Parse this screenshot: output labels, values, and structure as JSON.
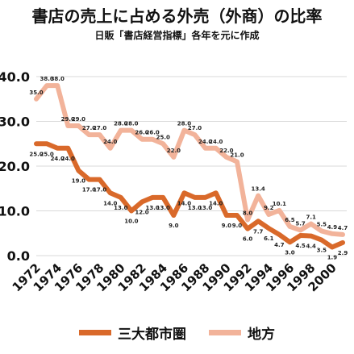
{
  "title": "書店の売上に占める外売（外商）の比率",
  "subtitle": "日販「書店経営指標」各年を元に作成",
  "chart_data": {
    "type": "line",
    "x": [
      1972,
      1973,
      1974,
      1975,
      1976,
      1977,
      1978,
      1979,
      1980,
      1981,
      1982,
      1983,
      1984,
      1985,
      1986,
      1987,
      1988,
      1989,
      1990,
      1991,
      1992,
      1993,
      1994,
      1995,
      1996,
      1997,
      1998,
      1999,
      2000,
      2001
    ],
    "x_tick_labels": [
      "1972",
      "1974",
      "1976",
      "1978",
      "1980",
      "1982",
      "1984",
      "1986",
      "1988",
      "1990",
      "1992",
      "1994",
      "1996",
      "1998",
      "2000"
    ],
    "ylim": [
      0,
      40
    ],
    "y_ticks": [
      "0.0",
      "10.0",
      "20.0",
      "30.0",
      "40.0"
    ],
    "grid": true,
    "legend_position": "bottom",
    "series": [
      {
        "name": "三大都市圏",
        "color": "#d9692a",
        "values": [
          25.0,
          25.0,
          24.0,
          24.0,
          19.0,
          17.0,
          17.0,
          14.0,
          13.0,
          10.0,
          12.0,
          13.0,
          13.0,
          9.0,
          14.0,
          13.0,
          13.0,
          14.0,
          9.0,
          9.0,
          6.0,
          7.7,
          6.1,
          4.7,
          3.0,
          4.5,
          4.4,
          3.5,
          1.9,
          2.9
        ],
        "labels": [
          "25.0",
          "25.0",
          "24.0",
          "24.0",
          "19.0",
          "17.0",
          "17.0",
          "14.0",
          "13.0",
          "10.0",
          "12.0",
          "13.0",
          "13.0",
          "9.0",
          "14.0",
          "13.0",
          "13.0",
          "14.0",
          "9.0",
          "9.0",
          "6.0",
          "7.7",
          "6.1",
          "4.7",
          "3.0",
          "4.5",
          "4.4",
          "3.5",
          "1.9",
          "2.9"
        ]
      },
      {
        "name": "地方",
        "color": "#f2b39a",
        "values": [
          35.0,
          38.0,
          38.0,
          29.0,
          29.0,
          27.0,
          27.0,
          24.0,
          28.0,
          28.0,
          26.0,
          26.0,
          25.0,
          22.0,
          28.0,
          27.0,
          24.0,
          24.0,
          22.0,
          21.0,
          8.0,
          13.4,
          9.2,
          10.1,
          6.5,
          5.7,
          7.1,
          5.5,
          4.9,
          4.7
        ],
        "labels": [
          "35.0",
          "38.0",
          "38.0",
          "29.0",
          "29.0",
          "27.0",
          "27.0",
          "24.0",
          "28.0",
          "28.0",
          "26.0",
          "26.0",
          "25.0",
          "22.0",
          "28.0",
          "27.0",
          "24.0",
          "24.0",
          "22.0",
          "21.0",
          "8.0",
          "13.4",
          "9.2",
          "10.1",
          "6.5",
          "5.7",
          "7.1",
          "5.5",
          "4.9",
          "4.7"
        ]
      }
    ]
  }
}
